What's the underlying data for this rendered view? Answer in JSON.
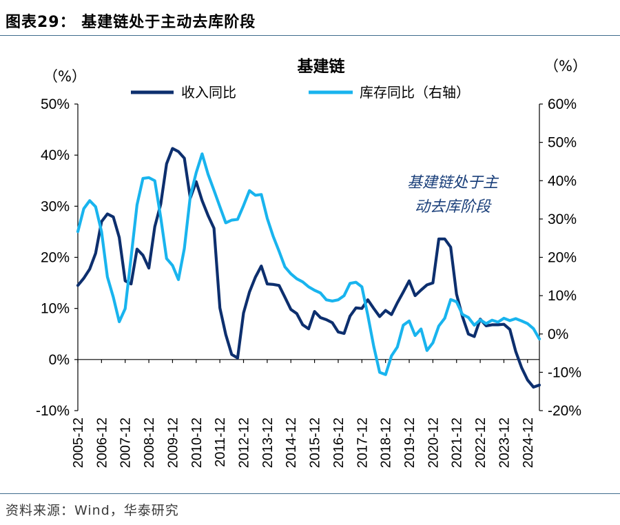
{
  "figure": {
    "label": "图表29：",
    "title": "基建链处于主动去库阶段",
    "source": "资料来源：Wind，华泰研究"
  },
  "chart_data": {
    "type": "line",
    "title": "基建链",
    "ylabel_left": "（%）",
    "ylabel_right": "（%）",
    "annotation": [
      "基建链处于主",
      "动去库阶段"
    ],
    "ylim_left": [
      -10,
      50
    ],
    "ylim_right": [
      -20,
      60
    ],
    "yticks_left": [
      "50%",
      "40%",
      "30%",
      "20%",
      "10%",
      "0%",
      "-10%"
    ],
    "yticks_right": [
      "60%",
      "50%",
      "40%",
      "30%",
      "20%",
      "10%",
      "0%",
      "-10%",
      "-20%"
    ],
    "x_quarters_from": "2005-12",
    "xticks": [
      "2005-12",
      "2006-12",
      "2007-12",
      "2008-12",
      "2009-12",
      "2010-12",
      "2011-12",
      "2012-12",
      "2013-12",
      "2014-12",
      "2015-12",
      "2016-12",
      "2017-12",
      "2018-12",
      "2019-12",
      "2020-12",
      "2021-12",
      "2022-12",
      "2023-12",
      "2024-12"
    ],
    "colors": {
      "revenue": "#0d2f6e",
      "inventory": "#19b4ee"
    },
    "series": [
      {
        "name": "收入同比",
        "axis": "left",
        "values": [
          14.5,
          15.9,
          17.7,
          20.8,
          27.0,
          28.5,
          27.9,
          23.9,
          15.4,
          14.8,
          21.6,
          20.4,
          17.9,
          26.0,
          30.4,
          38.3,
          41.3,
          40.7,
          39.4,
          31.6,
          34.8,
          31.1,
          28.2,
          25.7,
          10.1,
          4.9,
          1.0,
          0.3,
          9.1,
          13.2,
          16.1,
          18.3,
          14.8,
          14.7,
          14.5,
          12.2,
          9.8,
          9.0,
          6.8,
          6.0,
          9.4,
          8.2,
          7.8,
          7.2,
          5.4,
          5.1,
          8.5,
          10.1,
          10.0,
          11.7,
          10.0,
          8.4,
          9.6,
          8.8,
          11.1,
          13.2,
          15.4,
          12.5,
          13.6,
          14.6,
          15.0,
          23.6,
          23.6,
          22.0,
          12.8,
          8.4,
          5.0,
          4.5,
          7.9,
          6.6,
          6.8,
          6.8,
          6.9,
          5.9,
          1.6,
          -1.6,
          -4.0,
          -5.4,
          -5.0
        ]
      },
      {
        "name": "库存同比（右轴）",
        "axis": "right",
        "values": [
          26.7,
          32.7,
          34.8,
          33.2,
          26.7,
          14.9,
          9.6,
          3.2,
          6.6,
          20.0,
          33.7,
          40.6,
          40.8,
          40.0,
          30.4,
          19.7,
          17.9,
          14.2,
          22.3,
          35.9,
          42.1,
          47.0,
          41.7,
          37.5,
          33.2,
          29.0,
          29.7,
          29.9,
          33.5,
          37.4,
          36.2,
          36.4,
          30.2,
          25.5,
          21.6,
          17.5,
          15.7,
          14.4,
          13.6,
          12.3,
          11.4,
          10.7,
          8.9,
          8.6,
          8.9,
          10.0,
          13.2,
          13.5,
          12.3,
          4.9,
          -3.2,
          -10.0,
          -10.6,
          -5.7,
          -3.4,
          2.3,
          3.4,
          -0.4,
          1.3,
          -4.3,
          -2.3,
          2.1,
          4.1,
          9.0,
          8.4,
          5.1,
          4.3,
          2.3,
          3.7,
          2.7,
          3.6,
          3.1,
          4.1,
          3.5,
          4.0,
          3.4,
          2.7,
          1.4,
          -1.3
        ]
      }
    ]
  }
}
